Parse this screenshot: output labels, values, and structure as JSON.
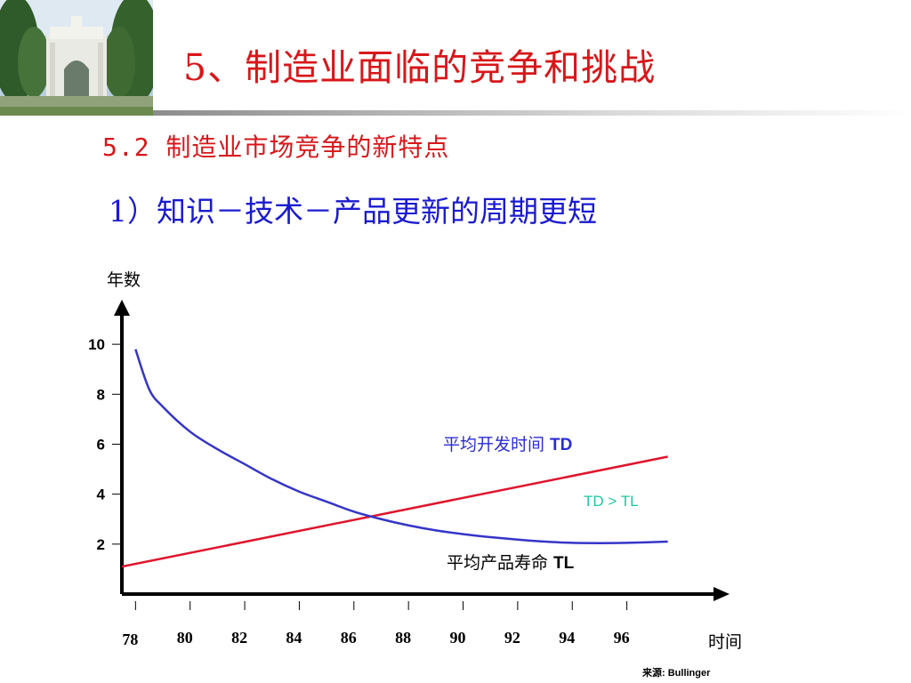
{
  "slide": {
    "title": "5、制造业面临的竞争和挑战",
    "subtitle": "5.2 制造业市场竞争的新特点",
    "point": "1）知识－技术－产品更新的周期更短"
  },
  "colors": {
    "title": "#d8171a",
    "point": "#1a1ad0",
    "td_line": "#e0142c",
    "tl_line": "#3535c8",
    "td_label": "#2b2bd6",
    "comparison": "#1fc8a0"
  },
  "photo": {
    "icon": "campus-gate-photo"
  },
  "chart_data": {
    "type": "line",
    "ylabel": "年数",
    "xlabel": "时间",
    "x_ticks": [
      "78",
      "80",
      "82",
      "84",
      "86",
      "88",
      "90",
      "92",
      "94",
      "96"
    ],
    "y_ticks": [
      "2",
      "4",
      "6",
      "8",
      "10"
    ],
    "ylim": [
      0,
      11.5
    ],
    "xlim": [
      77.5,
      99.5
    ],
    "grid": false,
    "series": [
      {
        "name": "平均开发时间 TD",
        "x": [
          77.5,
          97.5
        ],
        "y": [
          1.1,
          5.5
        ]
      },
      {
        "name": "平均产品寿命 TL",
        "x": [
          78,
          78.5,
          79,
          80,
          81,
          82,
          83,
          84,
          85,
          86,
          87,
          88,
          89,
          90,
          91,
          92,
          93,
          94,
          95,
          96,
          97.5
        ],
        "y": [
          9.8,
          8.2,
          7.5,
          6.5,
          5.8,
          5.2,
          4.6,
          4.1,
          3.7,
          3.3,
          3.0,
          2.75,
          2.55,
          2.4,
          2.28,
          2.18,
          2.1,
          2.05,
          2.04,
          2.05,
          2.1
        ]
      }
    ],
    "annotations": [
      {
        "text": "平均开发时间 ",
        "bold": "TD"
      },
      {
        "text": "TD > TL"
      },
      {
        "text": "平均产品寿命 ",
        "bold": "TL"
      }
    ],
    "source": "来源: Bullinger"
  }
}
